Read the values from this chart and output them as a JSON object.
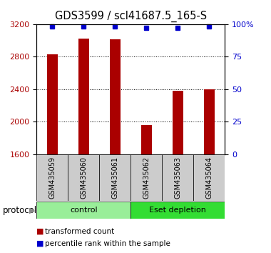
{
  "title": "GDS3599 / scl41687.5_165-S",
  "samples": [
    "GSM435059",
    "GSM435060",
    "GSM435061",
    "GSM435062",
    "GSM435063",
    "GSM435064"
  ],
  "bar_values": [
    2830,
    3020,
    3010,
    1960,
    2380,
    2400
  ],
  "percentile_values": [
    98,
    98,
    98,
    97,
    97,
    98
  ],
  "ylim_left": [
    1600,
    3200
  ],
  "ylim_right": [
    0,
    100
  ],
  "yticks_left": [
    1600,
    2000,
    2400,
    2800,
    3200
  ],
  "yticks_right": [
    0,
    25,
    50,
    75,
    100
  ],
  "bar_color": "#aa0000",
  "percentile_color": "#0000cc",
  "groups": [
    {
      "label": "control",
      "start": 0,
      "end": 2,
      "color": "#99ee99"
    },
    {
      "label": "Eset depletion",
      "start": 3,
      "end": 5,
      "color": "#33dd33"
    }
  ],
  "protocol_label": "protocol",
  "legend_bar_label": "transformed count",
  "legend_percentile_label": "percentile rank within the sample",
  "bg_label_area": "#cccccc",
  "title_fontsize": 10.5,
  "tick_fontsize": 8,
  "label_fontsize": 8.5
}
